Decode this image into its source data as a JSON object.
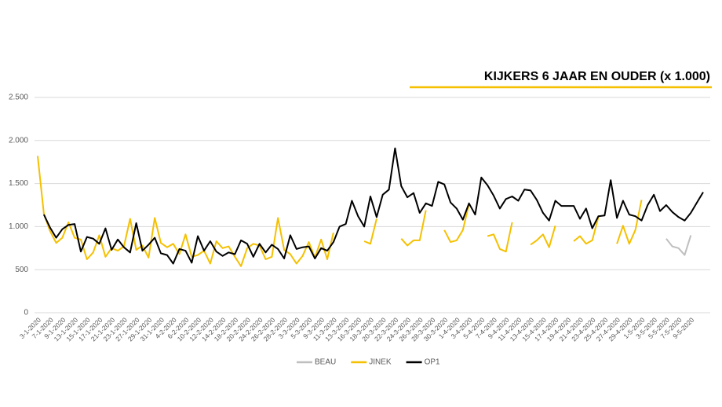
{
  "chart_data": {
    "type": "line",
    "title": "KIJKERS 6 JAAR EN OUDER  (x 1.000)",
    "categories": [
      "3-1-2020",
      null,
      "7-1-2020",
      null,
      "9-1-2020",
      null,
      "13-1-2020",
      null,
      "15-1-2020",
      null,
      "17-1-2020",
      null,
      "21-1-2020",
      null,
      "23-1-2020",
      null,
      "27-1-2020",
      null,
      "29-1-2020",
      null,
      "31-1-2020",
      null,
      "4-2-2020",
      null,
      "6-2-2020",
      null,
      "10-2-2020",
      null,
      "12-2-2020",
      null,
      "14-2-2020",
      null,
      "18-2-2020",
      null,
      "20-2-2020",
      null,
      "24-2-2020",
      null,
      "26-2-2020",
      null,
      "28-2-2020",
      null,
      "3-3-2020",
      null,
      "5-3-2020",
      null,
      "9-3-2020",
      null,
      "11-3-2020",
      null,
      "13-3-2020",
      null,
      "16-3-2020",
      null,
      "18-3-2020",
      null,
      "20-3-2020",
      null,
      "22-3-2020",
      null,
      "24-3-2020",
      null,
      "26-3-2020",
      null,
      "28-3-2020",
      null,
      "30-3-2020",
      null,
      "1-4-2020",
      null,
      "3-4-2020",
      null,
      "5-4-2020",
      null,
      "7-4-2020",
      null,
      "9-4-2020",
      null,
      "11-4-2020",
      null,
      "13-4-2020",
      null,
      "15-4-2020",
      null,
      "17-4-2020",
      null,
      "19-4-2020",
      null,
      "21-4-2020",
      null,
      "23-4-2020",
      null,
      "25-4-2020",
      null,
      "27-4-2020",
      null,
      "29-4-2020",
      null,
      "1-5-2020",
      null,
      "3-5-2020",
      null,
      "5-5-2020",
      null,
      "7-5-2020",
      null,
      "9-5-2020",
      null,
      null
    ],
    "series": [
      {
        "name": "BEAU",
        "color": "#bfbfbf",
        "values": [
          null,
          null,
          null,
          null,
          null,
          null,
          null,
          null,
          null,
          null,
          null,
          null,
          null,
          null,
          null,
          null,
          null,
          null,
          null,
          null,
          null,
          null,
          null,
          null,
          null,
          null,
          null,
          null,
          null,
          null,
          null,
          null,
          null,
          null,
          null,
          null,
          null,
          null,
          null,
          null,
          null,
          null,
          null,
          null,
          null,
          null,
          null,
          null,
          null,
          null,
          null,
          null,
          null,
          null,
          null,
          null,
          null,
          null,
          null,
          null,
          null,
          null,
          null,
          null,
          null,
          null,
          null,
          null,
          null,
          null,
          null,
          null,
          null,
          null,
          null,
          null,
          null,
          null,
          null,
          null,
          null,
          null,
          null,
          null,
          null,
          null,
          null,
          null,
          null,
          null,
          null,
          null,
          null,
          null,
          null,
          null,
          null,
          null,
          null,
          null,
          null,
          null,
          860,
          770,
          750,
          670,
          900,
          null,
          null
        ]
      },
      {
        "name": "JINEK",
        "color": "#f5c000",
        "values": [
          1820,
          1150,
          950,
          810,
          870,
          1050,
          870,
          850,
          620,
          700,
          900,
          650,
          750,
          720,
          770,
          1090,
          730,
          780,
          640,
          1100,
          810,
          760,
          800,
          680,
          910,
          650,
          670,
          720,
          570,
          830,
          750,
          770,
          650,
          540,
          750,
          800,
          780,
          620,
          650,
          1100,
          730,
          680,
          570,
          660,
          820,
          640,
          850,
          620,
          930,
          null,
          null,
          null,
          null,
          830,
          800,
          1090,
          null,
          null,
          null,
          860,
          780,
          840,
          840,
          1190,
          null,
          null,
          960,
          820,
          840,
          960,
          1260,
          null,
          null,
          890,
          910,
          740,
          710,
          1050,
          null,
          null,
          790,
          840,
          910,
          760,
          1010,
          null,
          null,
          830,
          890,
          800,
          840,
          1110,
          null,
          null,
          800,
          1010,
          800,
          960,
          1310,
          null,
          null,
          null,
          null,
          null,
          null,
          null,
          null,
          null,
          null
        ]
      },
      {
        "name": "OP1",
        "color": "#000000",
        "values": [
          null,
          1140,
          990,
          870,
          970,
          1020,
          1030,
          710,
          880,
          860,
          800,
          980,
          730,
          850,
          760,
          700,
          1040,
          720,
          790,
          870,
          690,
          670,
          570,
          740,
          720,
          580,
          890,
          720,
          830,
          710,
          660,
          700,
          680,
          840,
          800,
          650,
          800,
          700,
          790,
          740,
          630,
          900,
          740,
          760,
          770,
          630,
          750,
          720,
          820,
          1000,
          1030,
          1300,
          1120,
          1000,
          1350,
          1110,
          1370,
          1430,
          1910,
          1470,
          1340,
          1390,
          1160,
          1270,
          1240,
          1520,
          1490,
          1280,
          1210,
          1080,
          1270,
          1140,
          1570,
          1480,
          1360,
          1210,
          1320,
          1350,
          1300,
          1430,
          1420,
          1310,
          1160,
          1070,
          1300,
          1240,
          1240,
          1240,
          1090,
          1210,
          980,
          1120,
          1130,
          1540,
          1100,
          1300,
          1140,
          1120,
          1070,
          1250,
          1370,
          1180,
          1250,
          1170,
          1110,
          1070,
          1160,
          1280,
          1400
        ]
      }
    ],
    "ylim": [
      0,
      2500
    ],
    "yticks": [
      0,
      500,
      {
        "value": 1000,
        "label": "1.000"
      },
      {
        "value": 1500,
        "label": "1.500"
      },
      {
        "value": 2000,
        "label": "2.000"
      },
      {
        "value": 2500,
        "label": "2.500"
      }
    ],
    "grid": true,
    "legend": "bottom"
  }
}
